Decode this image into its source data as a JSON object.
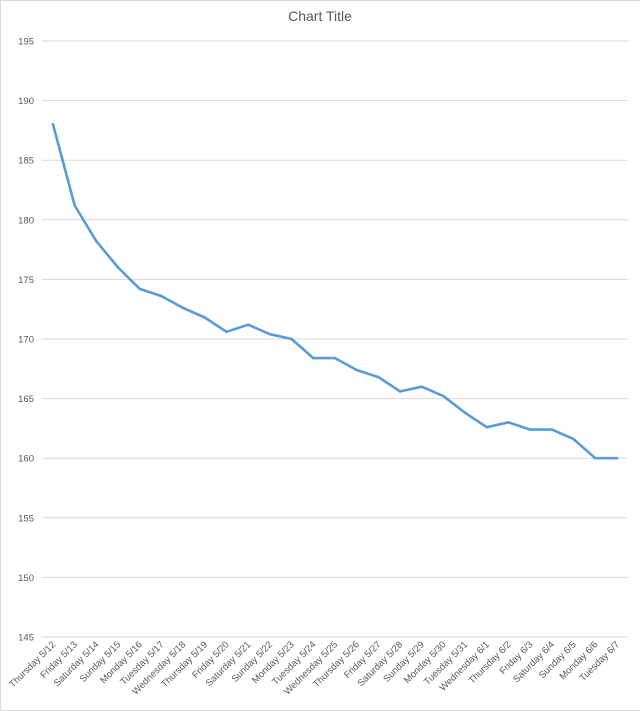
{
  "chart_data": {
    "type": "line",
    "title": "Chart Title",
    "xlabel": "",
    "ylabel": "",
    "ylim": [
      145,
      195
    ],
    "yticks": [
      "145",
      "150",
      "155",
      "160",
      "165",
      "170",
      "175",
      "180",
      "185",
      "190",
      "195"
    ],
    "grid": true,
    "legend": "none",
    "categories": [
      "Thursday 5/12",
      "Friday 5/13",
      "Saturday 5/14",
      "Sunday 5/15",
      "Monday 5/16",
      "Tuesday 5/17",
      "Wednesday 5/18",
      "Thursday 5/19",
      "Friday 5/20",
      "Saturday 5/21",
      "Sunday 5/22",
      "Monday 5/23",
      "Tuesday 5/24",
      "Wednesday 5/25",
      "Thursday 5/26",
      "Friday 5/27",
      "Saturday 5/28",
      "Sunday 5/29",
      "Monday 5/30",
      "Tuesday 5/31",
      "Wednesday 6/1",
      "Thursday 6/2",
      "Friday 6/3",
      "Saturday 6/4",
      "Sunday 6/5",
      "Monday 6/6",
      "Tuesday 6/7"
    ],
    "series": [
      {
        "values": [
          188,
          181.2,
          178.2,
          176,
          174.2,
          173.6,
          172.6,
          171.8,
          170.6,
          171.2,
          170.4,
          170,
          168.4,
          168.4,
          167.4,
          166.8,
          165.6,
          166,
          165.2,
          163.8,
          162.6,
          163,
          162.4,
          162.4,
          161.6,
          160,
          160
        ],
        "color": "#5B9BD5"
      }
    ],
    "colors": {
      "gridline": "#d9d9d9",
      "axis_text": "#595959",
      "line": "#5B9BD5"
    }
  }
}
